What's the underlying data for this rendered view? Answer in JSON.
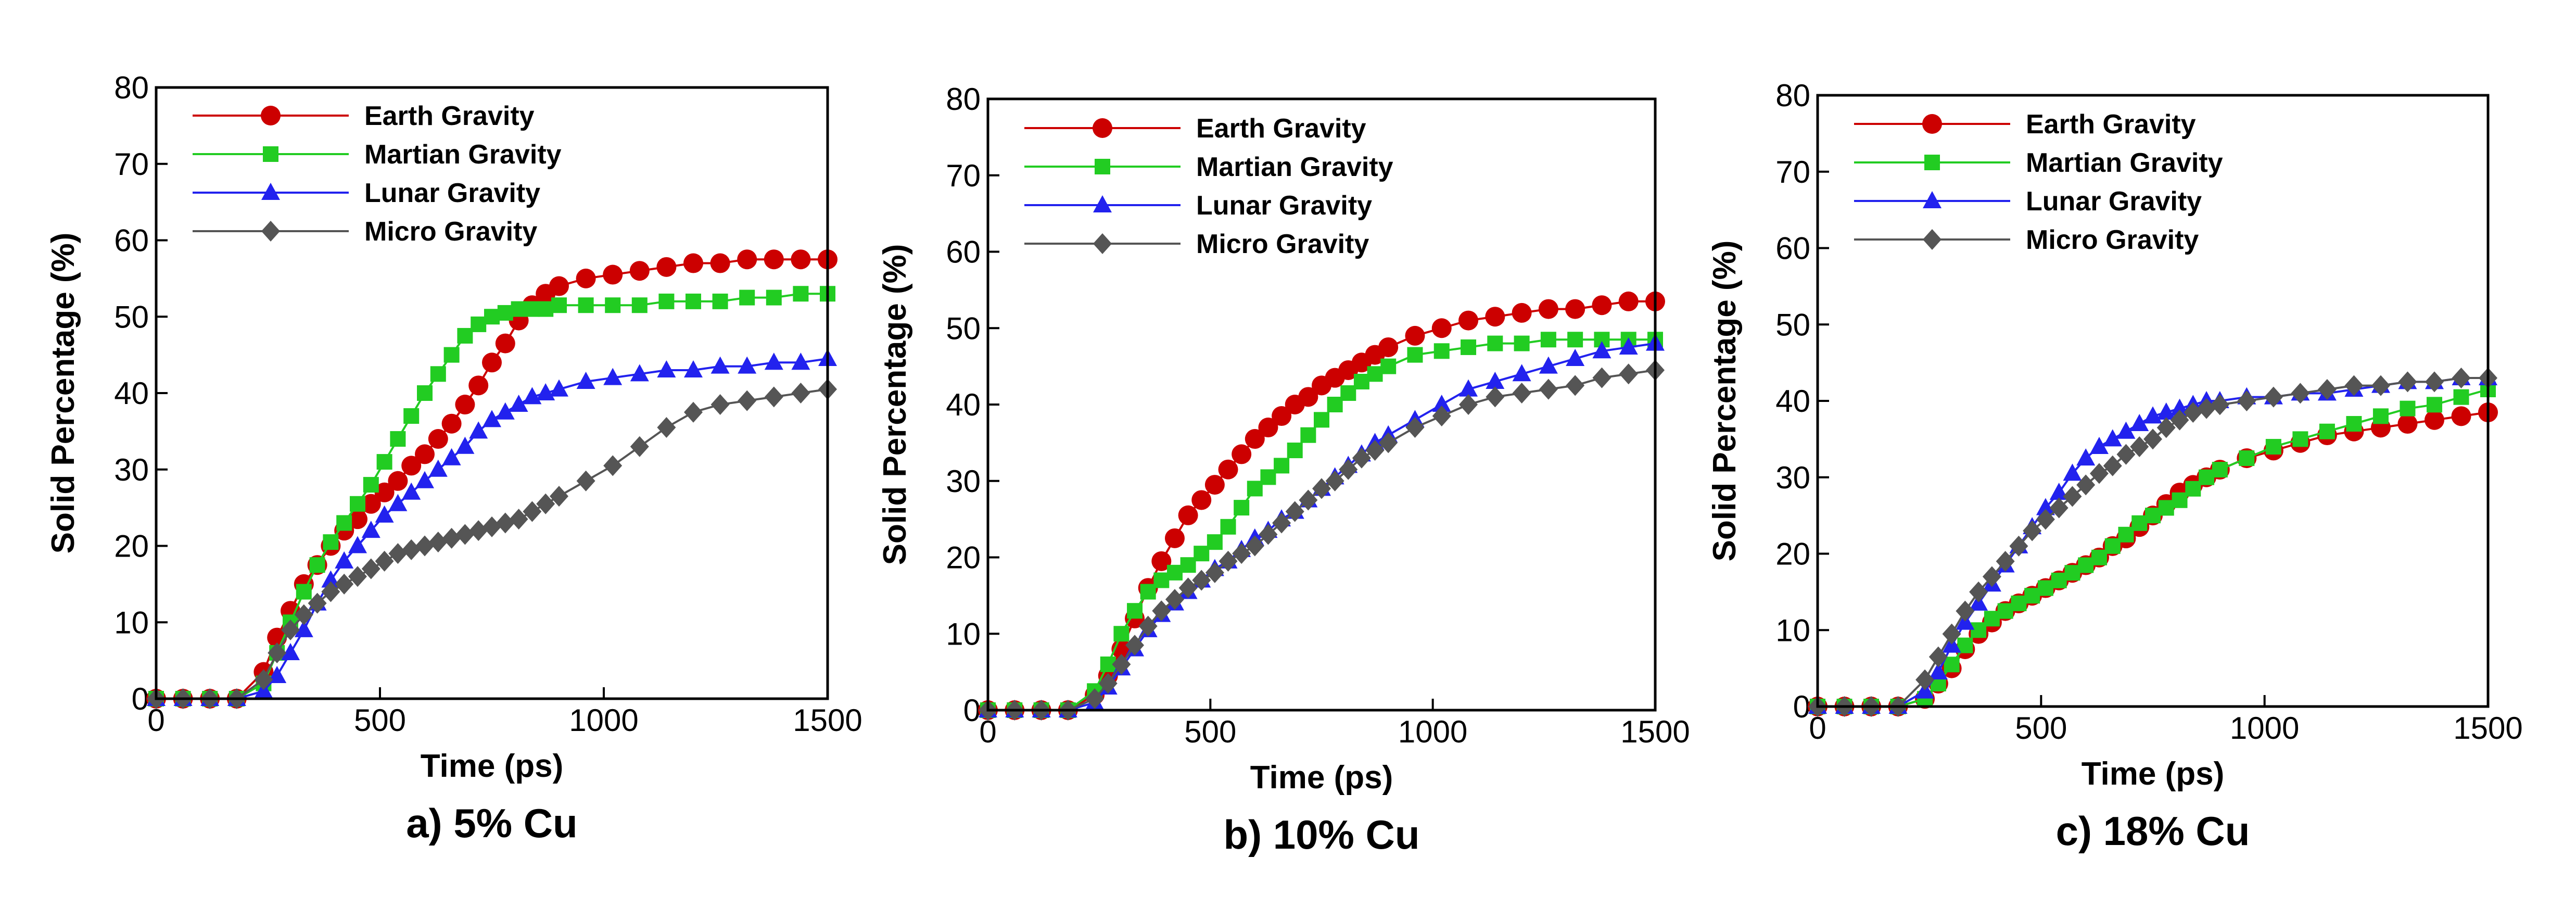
{
  "colors": {
    "earth": "#cc0000",
    "martian": "#22cc22",
    "lunar": "#2222ee",
    "micro": "#555555"
  },
  "chart_data": [
    {
      "type": "line",
      "caption": "a) 5% Cu",
      "xlabel": "Time (ps)",
      "ylabel": "Solid Percentage (%)",
      "xlim": [
        0,
        1500
      ],
      "ylim": [
        0,
        80
      ],
      "xticks": [
        "0",
        "500",
        "1000",
        "1500"
      ],
      "yticks": [
        "0",
        "10",
        "20",
        "30",
        "40",
        "50",
        "60",
        "70",
        "80"
      ],
      "legend": "top-left",
      "x": [
        0,
        60,
        120,
        180,
        240,
        270,
        300,
        330,
        360,
        390,
        420,
        450,
        480,
        510,
        540,
        570,
        600,
        630,
        660,
        690,
        720,
        750,
        780,
        810,
        840,
        870,
        900,
        960,
        1020,
        1080,
        1140,
        1200,
        1260,
        1320,
        1380,
        1440,
        1500
      ],
      "series": [
        {
          "name": "Earth Gravity",
          "marker": "circle",
          "color": "earth",
          "values": [
            0,
            0,
            0,
            0,
            3.5,
            8,
            11.5,
            15,
            17.5,
            20,
            22,
            23.5,
            25.5,
            27,
            28.5,
            30.5,
            32,
            34,
            36,
            38.5,
            41,
            44,
            46.5,
            49.5,
            51.5,
            53,
            54,
            55,
            55.5,
            56,
            56.5,
            57,
            57,
            57.5,
            57.5,
            57.5,
            57.5
          ]
        },
        {
          "name": "Martian Gravity",
          "marker": "square",
          "color": "martian",
          "values": [
            0,
            0,
            0,
            0,
            2,
            6,
            10,
            14,
            17.5,
            20.5,
            23,
            25.5,
            28,
            31,
            34,
            37,
            40,
            42.5,
            45,
            47.5,
            49,
            50,
            50.5,
            51,
            51,
            51,
            51.5,
            51.5,
            51.5,
            51.5,
            52,
            52,
            52,
            52.5,
            52.5,
            53,
            53
          ]
        },
        {
          "name": "Lunar Gravity",
          "marker": "triangle",
          "color": "lunar",
          "values": [
            0,
            0,
            0,
            0,
            1,
            3,
            6,
            9,
            12.5,
            15.5,
            18,
            20,
            22,
            24,
            25.5,
            27,
            28.5,
            30,
            31.5,
            33,
            35,
            36.5,
            37.5,
            38.5,
            39.5,
            40,
            40.5,
            41.5,
            42,
            42.5,
            43,
            43,
            43.5,
            43.5,
            44,
            44,
            44.5
          ]
        },
        {
          "name": "Micro Gravity",
          "marker": "diamond",
          "color": "micro",
          "values": [
            0,
            0,
            0,
            0,
            2.5,
            6,
            9,
            11,
            12.5,
            14,
            15,
            16,
            17,
            18,
            19,
            19.5,
            20,
            20.5,
            21,
            21.5,
            22,
            22.5,
            23,
            23.5,
            24.5,
            25.5,
            26.5,
            28.5,
            30.5,
            33,
            35.5,
            37.5,
            38.5,
            39,
            39.5,
            40,
            40.5
          ]
        }
      ]
    },
    {
      "type": "line",
      "caption": "b) 10% Cu",
      "xlabel": "Time (ps)",
      "ylabel": "Solid Percentage (%)",
      "xlim": [
        0,
        1500
      ],
      "ylim": [
        0,
        80
      ],
      "xticks": [
        "0",
        "500",
        "1000",
        "1500"
      ],
      "yticks": [
        "0",
        "10",
        "20",
        "30",
        "40",
        "50",
        "60",
        "70",
        "80"
      ],
      "legend": "top-left",
      "x": [
        0,
        60,
        120,
        180,
        240,
        270,
        300,
        330,
        360,
        390,
        420,
        450,
        480,
        510,
        540,
        570,
        600,
        630,
        660,
        690,
        720,
        750,
        780,
        810,
        840,
        870,
        900,
        960,
        1020,
        1080,
        1140,
        1200,
        1260,
        1320,
        1380,
        1440,
        1500
      ],
      "series": [
        {
          "name": "Earth Gravity",
          "marker": "circle",
          "color": "earth",
          "values": [
            0,
            0,
            0,
            0,
            2,
            4.5,
            8,
            12,
            16,
            19.5,
            22.5,
            25.5,
            27.5,
            29.5,
            31.5,
            33.5,
            35.5,
            37,
            38.5,
            40,
            41,
            42.5,
            43.5,
            44.5,
            45.5,
            46.5,
            47.5,
            49,
            50,
            51,
            51.5,
            52,
            52.5,
            52.5,
            53,
            53.5,
            53.5
          ]
        },
        {
          "name": "Martian Gravity",
          "marker": "square",
          "color": "martian",
          "values": [
            0,
            0,
            0,
            0,
            2.5,
            6,
            10,
            13,
            15.5,
            17,
            18,
            19,
            20.5,
            22,
            24,
            26.5,
            29,
            30.5,
            32,
            34,
            36,
            38,
            40,
            41.5,
            43,
            44,
            45,
            46.5,
            47,
            47.5,
            48,
            48,
            48.5,
            48.5,
            48.5,
            48.5,
            48.5
          ]
        },
        {
          "name": "Lunar Gravity",
          "marker": "triangle",
          "color": "lunar",
          "values": [
            0,
            0,
            0,
            0,
            1,
            3,
            5.5,
            8,
            10.5,
            12.5,
            14,
            15.5,
            17,
            18.5,
            19.5,
            21,
            22.5,
            23.5,
            25,
            26,
            27.5,
            29,
            30.5,
            32,
            33.5,
            35,
            36,
            38,
            40,
            42,
            43,
            44,
            45,
            46,
            47,
            47.5,
            48
          ]
        },
        {
          "name": "Micro Gravity",
          "marker": "diamond",
          "color": "micro",
          "values": [
            0,
            0,
            0,
            0,
            1.5,
            3.5,
            6,
            8.5,
            11,
            13,
            14.5,
            16,
            17,
            18,
            19.5,
            20.5,
            21.5,
            23,
            24.5,
            26,
            27.5,
            29,
            30,
            31.5,
            33,
            34,
            35,
            37,
            38.5,
            40,
            41,
            41.5,
            42,
            42.5,
            43.5,
            44,
            44.5
          ]
        }
      ]
    },
    {
      "type": "line",
      "caption": "c) 18% Cu",
      "xlabel": "Time (ps)",
      "ylabel": "Solid Percentage (%)",
      "xlim": [
        0,
        1500
      ],
      "ylim": [
        0,
        80
      ],
      "xticks": [
        "0",
        "500",
        "1000",
        "1500"
      ],
      "yticks": [
        "0",
        "10",
        "20",
        "30",
        "40",
        "50",
        "60",
        "70",
        "80"
      ],
      "legend": "top-left",
      "x": [
        0,
        60,
        120,
        180,
        240,
        270,
        300,
        330,
        360,
        390,
        420,
        450,
        480,
        510,
        540,
        570,
        600,
        630,
        660,
        690,
        720,
        750,
        780,
        810,
        840,
        870,
        900,
        960,
        1020,
        1080,
        1140,
        1200,
        1260,
        1320,
        1380,
        1440,
        1500
      ],
      "series": [
        {
          "name": "Earth Gravity",
          "marker": "circle",
          "color": "earth",
          "values": [
            0,
            0,
            0,
            0,
            1,
            3,
            5,
            7.5,
            9.5,
            11,
            12.5,
            13.5,
            14.5,
            15.5,
            16.5,
            17.5,
            18.5,
            19.5,
            21,
            22,
            23.5,
            25,
            26.5,
            28,
            29,
            30,
            31,
            32.5,
            33.5,
            34.5,
            35.5,
            36,
            36.5,
            37,
            37.5,
            38,
            38.5
          ]
        },
        {
          "name": "Martian Gravity",
          "marker": "square",
          "color": "martian",
          "values": [
            0,
            0,
            0,
            0,
            1,
            3,
            5.5,
            8,
            10,
            11.5,
            12.5,
            13.5,
            14.5,
            15.5,
            16.5,
            17.5,
            18.5,
            19.5,
            21,
            22.5,
            24,
            25,
            26,
            27,
            28.5,
            30,
            31,
            32.5,
            34,
            35,
            36,
            37,
            38,
            39,
            39.5,
            40.5,
            41.5
          ]
        },
        {
          "name": "Lunar Gravity",
          "marker": "triangle",
          "color": "lunar",
          "values": [
            0,
            0,
            0,
            0,
            2,
            4.5,
            8,
            11,
            13.5,
            16,
            18.5,
            21,
            23.5,
            26,
            28,
            30.5,
            32.5,
            34,
            35,
            36,
            37,
            38,
            38.5,
            39,
            39.5,
            40,
            40,
            40.5,
            40.5,
            41,
            41,
            41.5,
            42,
            42.5,
            42.5,
            43,
            43
          ]
        },
        {
          "name": "Micro Gravity",
          "marker": "diamond",
          "color": "micro",
          "values": [
            0,
            0,
            0,
            0,
            3.5,
            6.5,
            9.5,
            12.5,
            15,
            17,
            19,
            21,
            23,
            24.5,
            26,
            27.5,
            29,
            30.5,
            31.5,
            33,
            34,
            35,
            36.5,
            37.5,
            38.5,
            39,
            39.5,
            40,
            40.5,
            41,
            41.5,
            42,
            42,
            42.5,
            42.5,
            43,
            43
          ]
        }
      ]
    }
  ]
}
